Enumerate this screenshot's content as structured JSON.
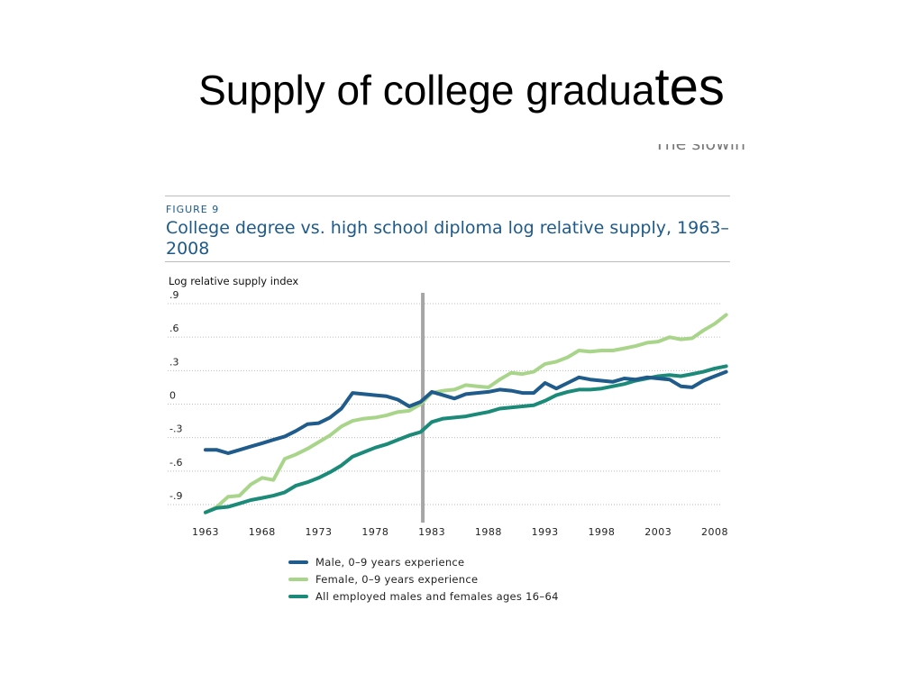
{
  "slide": {
    "title_main": "Supply of college gradua",
    "title_tail": "tes",
    "cropped_text": "The slowin"
  },
  "colors": {
    "male": "#1f5c8b",
    "female": "#a9d58a",
    "all": "#1b8a78",
    "divider": "#a6a6a6",
    "grid": "#bcbcbc",
    "title_blue": "#1d5a8a"
  },
  "chart_data": {
    "type": "line",
    "figure_label": "FIGURE 9",
    "title": "College degree vs. high school diploma log relative supply, 1963–2008",
    "ylabel": "Log relative supply index",
    "xlim": [
      1963,
      2009
    ],
    "ylim": [
      -0.9,
      0.9
    ],
    "yticks": [
      {
        "value": 0.9,
        "label": ".9"
      },
      {
        "value": 0.6,
        "label": ".6"
      },
      {
        "value": 0.3,
        "label": ".3"
      },
      {
        "value": 0,
        "label": "0"
      },
      {
        "value": -0.3,
        "label": "-.3"
      },
      {
        "value": -0.6,
        "label": "-.6"
      },
      {
        "value": -0.9,
        "label": "-.9"
      }
    ],
    "xticks": [
      {
        "value": 1963,
        "label": "1963"
      },
      {
        "value": 1968,
        "label": "1968"
      },
      {
        "value": 1973,
        "label": "1973"
      },
      {
        "value": 1978,
        "label": "1978"
      },
      {
        "value": 1983,
        "label": "1983"
      },
      {
        "value": 1988,
        "label": "1988"
      },
      {
        "value": 1993,
        "label": "1993"
      },
      {
        "value": 1998,
        "label": "1998"
      },
      {
        "value": 2003,
        "label": "2003"
      },
      {
        "value": 2008,
        "label": "2008"
      }
    ],
    "grid": true,
    "reference_line_x": 1982.2,
    "legend_position": "bottom",
    "x": [
      1963,
      1964,
      1965,
      1966,
      1967,
      1968,
      1969,
      1970,
      1971,
      1972,
      1973,
      1974,
      1975,
      1976,
      1977,
      1978,
      1979,
      1980,
      1981,
      1982,
      1983,
      1984,
      1985,
      1986,
      1987,
      1988,
      1989,
      1990,
      1991,
      1992,
      1993,
      1994,
      1995,
      1996,
      1997,
      1998,
      1999,
      2000,
      2001,
      2002,
      2003,
      2004,
      2005,
      2006,
      2007,
      2008,
      2009
    ],
    "series": [
      {
        "name": "Male, 0–9 years experience",
        "color_key": "male",
        "values": [
          -0.41,
          -0.41,
          -0.44,
          -0.41,
          -0.38,
          -0.35,
          -0.32,
          -0.29,
          -0.24,
          -0.18,
          -0.17,
          -0.12,
          -0.04,
          0.1,
          0.09,
          0.08,
          0.07,
          0.04,
          -0.02,
          0.02,
          0.11,
          0.08,
          0.05,
          0.09,
          0.1,
          0.11,
          0.13,
          0.12,
          0.1,
          0.1,
          0.19,
          0.14,
          0.19,
          0.24,
          0.22,
          0.21,
          0.2,
          0.23,
          0.22,
          0.24,
          0.23,
          0.22,
          0.16,
          0.15,
          0.21,
          0.25,
          0.29
        ]
      },
      {
        "name": "Female, 0–9 years experience",
        "color_key": "female",
        "values": [
          -0.97,
          -0.92,
          -0.83,
          -0.82,
          -0.72,
          -0.66,
          -0.68,
          -0.49,
          -0.45,
          -0.4,
          -0.34,
          -0.28,
          -0.2,
          -0.15,
          -0.13,
          -0.12,
          -0.1,
          -0.07,
          -0.06,
          0.0,
          0.1,
          0.12,
          0.13,
          0.17,
          0.16,
          0.15,
          0.22,
          0.28,
          0.27,
          0.29,
          0.36,
          0.38,
          0.42,
          0.48,
          0.47,
          0.48,
          0.48,
          0.5,
          0.52,
          0.55,
          0.56,
          0.6,
          0.58,
          0.59,
          0.66,
          0.72,
          0.8
        ]
      },
      {
        "name": "All employed males and females ages 16–64",
        "color_key": "all",
        "values": [
          -0.97,
          -0.93,
          -0.92,
          -0.89,
          -0.86,
          -0.84,
          -0.82,
          -0.79,
          -0.73,
          -0.7,
          -0.66,
          -0.61,
          -0.55,
          -0.47,
          -0.43,
          -0.39,
          -0.36,
          -0.32,
          -0.28,
          -0.25,
          -0.16,
          -0.13,
          -0.12,
          -0.11,
          -0.09,
          -0.07,
          -0.04,
          -0.03,
          -0.02,
          -0.01,
          0.03,
          0.08,
          0.11,
          0.13,
          0.13,
          0.14,
          0.16,
          0.18,
          0.21,
          0.23,
          0.25,
          0.26,
          0.25,
          0.27,
          0.29,
          0.32,
          0.34
        ]
      }
    ]
  }
}
